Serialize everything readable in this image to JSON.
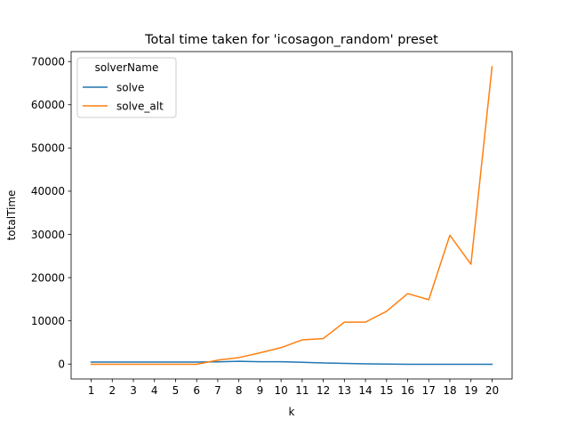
{
  "chart_data": {
    "type": "line",
    "title": "Total time taken for 'icosagon_random' preset",
    "xlabel": "k",
    "ylabel": "totalTime",
    "x": [
      1,
      2,
      3,
      4,
      5,
      6,
      7,
      8,
      9,
      10,
      11,
      12,
      13,
      14,
      15,
      16,
      17,
      18,
      19,
      20
    ],
    "x_tick_labels": [
      "1",
      "2",
      "3",
      "4",
      "5",
      "6",
      "7",
      "8",
      "9",
      "10",
      "11",
      "12",
      "13",
      "14",
      "15",
      "16",
      "17",
      "18",
      "19",
      "20"
    ],
    "xlim": [
      0.05,
      20.95
    ],
    "ylim": [
      -3450,
      72300
    ],
    "y_ticks": [
      0,
      10000,
      20000,
      30000,
      40000,
      50000,
      60000,
      70000
    ],
    "y_tick_labels": [
      "0",
      "10000",
      "20000",
      "30000",
      "40000",
      "50000",
      "60000",
      "70000"
    ],
    "grid": false,
    "legend": {
      "title": "solverName",
      "position": "top-left"
    },
    "series": [
      {
        "name": "solve",
        "color": "#1f77b4",
        "values": [
          450,
          450,
          450,
          450,
          450,
          450,
          500,
          650,
          550,
          550,
          400,
          250,
          150,
          50,
          0,
          -50,
          -50,
          -50,
          -50,
          -50
        ]
      },
      {
        "name": "solve_alt",
        "color": "#ff7f0e",
        "values": [
          -50,
          -50,
          -50,
          -50,
          -50,
          -50,
          900,
          1500,
          2600,
          3800,
          5600,
          5900,
          9700,
          9700,
          12200,
          16300,
          14900,
          29800,
          23100,
          68800
        ]
      }
    ]
  }
}
